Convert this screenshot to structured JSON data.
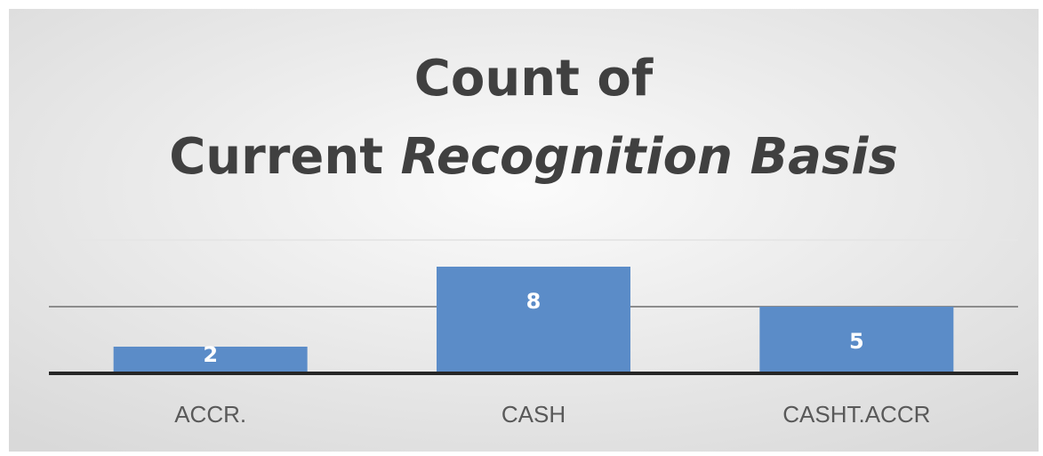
{
  "chart_data": {
    "type": "bar",
    "title": [
      "Count of",
      "Current",
      "Recognition Basis"
    ],
    "categories": [
      "ACCR.",
      "CASH",
      "CASHT.ACCR"
    ],
    "values": [
      2,
      8,
      5
    ],
    "color": "#5b8cc8",
    "ylim": [
      0,
      10
    ],
    "yticks": [
      0,
      5,
      10
    ],
    "grid": true
  }
}
